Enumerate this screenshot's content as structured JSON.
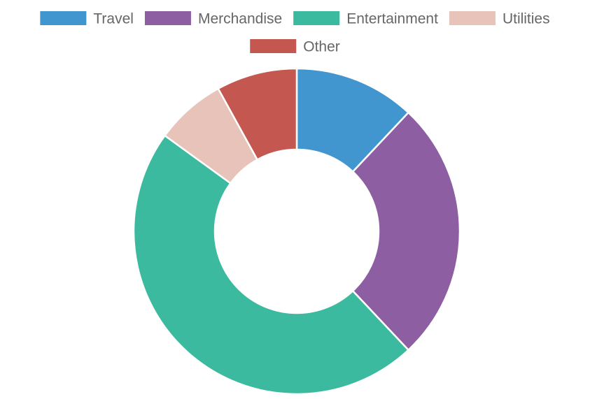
{
  "chart_data": {
    "type": "doughnut",
    "title": "",
    "legend_position": "top",
    "categories": [
      "Travel",
      "Merchandise",
      "Entertainment",
      "Utilities",
      "Other"
    ],
    "values": [
      12,
      26,
      47,
      7,
      8
    ],
    "colors": [
      "#4296cf",
      "#8e5ea2",
      "#3cba9f",
      "#e8c3b9",
      "#c45850"
    ],
    "border_color": "#ffffff"
  }
}
